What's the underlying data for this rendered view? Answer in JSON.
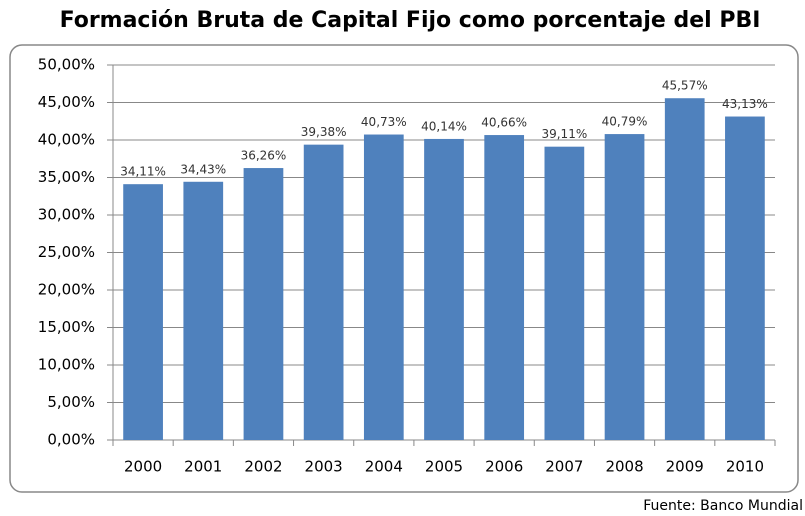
{
  "chart_data": {
    "type": "bar",
    "title": "Formación Bruta de Capital Fijo como porcentaje del PBI",
    "source": "Fuente: Banco Mundial",
    "categories": [
      "2000",
      "2001",
      "2002",
      "2003",
      "2004",
      "2005",
      "2006",
      "2007",
      "2008",
      "2009",
      "2010"
    ],
    "values": [
      34.11,
      34.43,
      36.26,
      39.38,
      40.73,
      40.14,
      40.66,
      39.11,
      40.79,
      45.57,
      43.13
    ],
    "value_labels": [
      "34,11%",
      "34,43%",
      "36,26%",
      "39,38%",
      "40,73%",
      "40,14%",
      "40,66%",
      "39,11%",
      "40,79%",
      "45,57%",
      "43,13%"
    ],
    "color": "#4f81bd",
    "ylim": [
      0,
      50
    ],
    "yticks": [
      {
        "value": 0,
        "label": "0,00%"
      },
      {
        "value": 5,
        "label": "5,00%"
      },
      {
        "value": 10,
        "label": "10,00%"
      },
      {
        "value": 15,
        "label": "15,00%"
      },
      {
        "value": 20,
        "label": "20,00%"
      },
      {
        "value": 25,
        "label": "25,00%"
      },
      {
        "value": 30,
        "label": "30,00%"
      },
      {
        "value": 35,
        "label": "35,00%"
      },
      {
        "value": 40,
        "label": "40,00%"
      },
      {
        "value": 45,
        "label": "45,00%"
      },
      {
        "value": 50,
        "label": "50,00%"
      }
    ],
    "grid": true
  }
}
